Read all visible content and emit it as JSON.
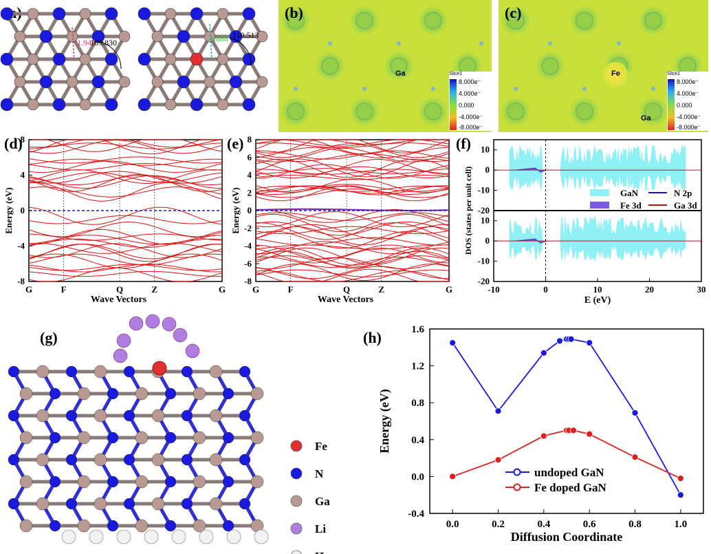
{
  "panels": {
    "a": {
      "label": "(a)",
      "left": {
        "bond": "1.947",
        "angle": "109.830"
      },
      "right": {
        "bond": "1.888",
        "angle": "110.513"
      }
    },
    "b": {
      "label": "(b)",
      "atom": "Ga"
    },
    "c": {
      "label": "(c)",
      "atom_fe": "Fe",
      "atom_ga": "Ga"
    },
    "colorbar": {
      "title": "Slice1",
      "ticks": [
        "8.000e⁻",
        "4.000e⁻",
        "0.000",
        "-4.000e⁻",
        "-8.000e⁻"
      ]
    },
    "d": {
      "label": "(d)"
    },
    "e": {
      "label": "(e)"
    },
    "f": {
      "label": "(f)"
    },
    "g": {
      "label": "(g)"
    },
    "h": {
      "label": "(h)"
    }
  },
  "legend_atoms": [
    {
      "name": "Fe",
      "color": "#e03030"
    },
    {
      "name": "N",
      "color": "#1a1adf"
    },
    {
      "name": "Ga",
      "color": "#b89a92"
    },
    {
      "name": "Li",
      "color": "#b07ee0"
    },
    {
      "name": "H",
      "color": "#f2f2f2"
    }
  ],
  "chart_data": [
    {
      "id": "d",
      "type": "line",
      "ylabel": "Energy (eV)",
      "xlabel": "Wave Vectors",
      "xticks": [
        "G",
        "F",
        "Q",
        "Z",
        "G"
      ],
      "yticks": [
        "8",
        "4",
        "0",
        "-4",
        "-8"
      ],
      "ylim": [
        -8,
        8
      ],
      "fermi_level": 0
    },
    {
      "id": "e",
      "type": "line",
      "ylabel": "Energy (eV)",
      "xlabel": "Wave Vectors",
      "xticks": [
        "G",
        "F",
        "Q",
        "Z",
        "G"
      ],
      "yticks": [
        "8",
        "6",
        "4",
        "2",
        "0",
        "-2",
        "-4",
        "-6",
        "-8"
      ],
      "ylim": [
        -8,
        8
      ],
      "fermi_level": 0
    },
    {
      "id": "f",
      "type": "area",
      "ylabel": "DOS (states per unit cell)",
      "xlabel": "E (eV)",
      "xticks": [
        "-10",
        "0",
        "10",
        "20",
        "30"
      ],
      "yticks_top": [
        "10",
        "0",
        "-10",
        "-20"
      ],
      "yticks_bottom": [
        "10",
        "0",
        "-10",
        "-20"
      ],
      "xlim": [
        -10,
        30
      ],
      "legend": [
        "GaN",
        "N 2p",
        "Fe 3d",
        "Ga 3d"
      ]
    },
    {
      "id": "h",
      "type": "line",
      "ylabel": "Energy (eV)",
      "xlabel": "Diffusion Coordinate",
      "xticks": [
        "0.0",
        "0.2",
        "0.4",
        "0.6",
        "0.8",
        "1.0"
      ],
      "yticks": [
        "1.6",
        "1.2",
        "0.8",
        "0.4",
        "0.0",
        "-0.4"
      ],
      "xlim": [
        -0.1,
        1.1
      ],
      "ylim": [
        -0.4,
        1.6
      ],
      "series": [
        {
          "name": "undoped GaN",
          "color": "#1a1adf",
          "x": [
            0.0,
            0.2,
            0.4,
            0.47,
            0.5,
            0.51,
            0.52,
            0.6,
            0.8,
            1.0
          ],
          "y": [
            1.45,
            0.71,
            1.34,
            1.47,
            1.49,
            1.49,
            1.49,
            1.45,
            0.69,
            -0.2
          ]
        },
        {
          "name": "Fe doped GaN",
          "color": "#e02020",
          "x": [
            0.0,
            0.2,
            0.4,
            0.5,
            0.51,
            0.53,
            0.6,
            0.8,
            1.0
          ],
          "y": [
            0.0,
            0.18,
            0.44,
            0.5,
            0.5,
            0.5,
            0.46,
            0.21,
            -0.02
          ]
        }
      ]
    }
  ]
}
